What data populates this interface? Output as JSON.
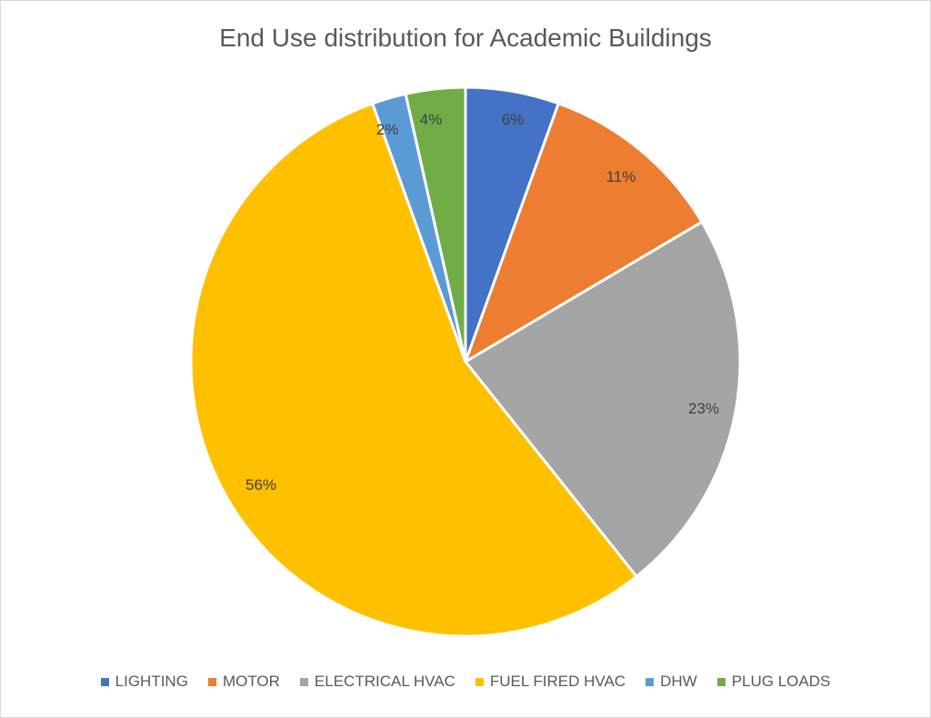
{
  "chart_data": {
    "type": "pie",
    "title": "End Use distribution for Academic Buildings",
    "categories": [
      "LIGHTING",
      "MOTOR",
      "ELECTRICAL HVAC",
      "FUEL FIRED HVAC",
      "DHW",
      "PLUG LOADS"
    ],
    "values": [
      6,
      11,
      23,
      56,
      2,
      4
    ],
    "labels": [
      "6%",
      "11%",
      "23%",
      "56%",
      "2%",
      "4%"
    ],
    "colors": [
      "#4472C4",
      "#ED7D31",
      "#A5A5A5",
      "#FFC000",
      "#5B9BD5",
      "#70AD47"
    ],
    "legend_position": "bottom",
    "start_angle_deg": 0,
    "direction": "clockwise"
  },
  "geometry_fractions": [
    5.5,
    11,
    22.8,
    55.2,
    2,
    3.5
  ],
  "title": "End Use distribution for Academic Buildings"
}
